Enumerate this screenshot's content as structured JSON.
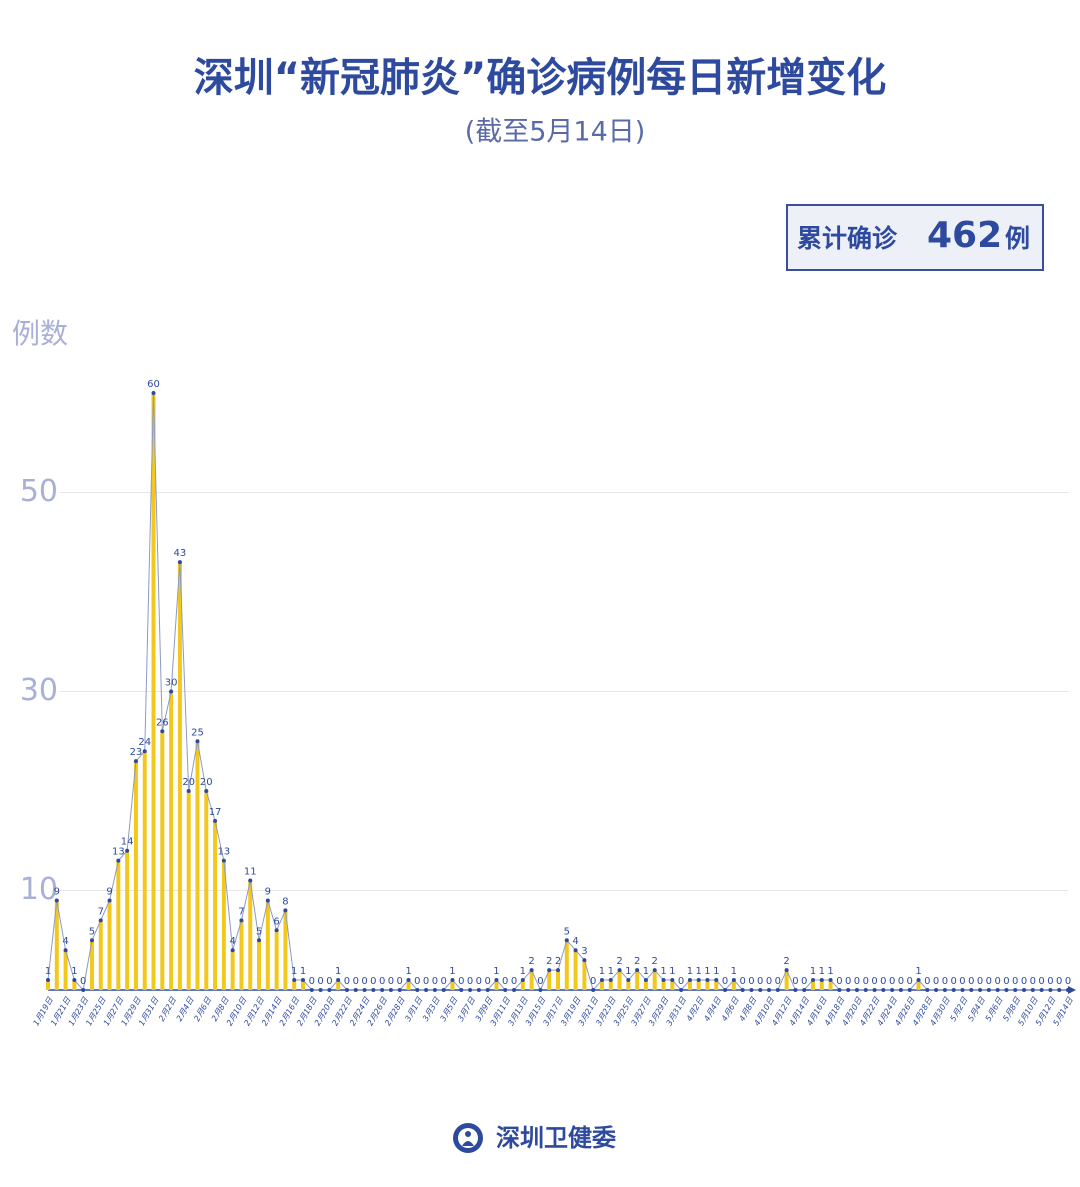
{
  "chart_data": {
    "type": "bar_line",
    "title": "深圳“新冠肺炎”确诊病例每日新增变化",
    "subtitle": "(截至5月14日)",
    "total_prefix": "累计确诊",
    "total": 462,
    "total_unit": "例",
    "y_label": "例数",
    "source": "深圳卫健委",
    "bar_color": "#f2c81c",
    "line_color": "#8e9ac4",
    "point_color": "#2e4a9e",
    "ylim": [
      0,
      60
    ],
    "yticks": [
      10,
      30,
      50
    ],
    "grid": true,
    "categories": [
      "1月19日",
      null,
      "1月21日",
      null,
      "1月23日",
      null,
      "1月25日",
      null,
      "1月27日",
      null,
      "1月29日",
      null,
      "1月31日",
      null,
      "2月2日",
      null,
      "2月4日",
      null,
      "2月6日",
      null,
      "2月8日",
      null,
      "2月10日",
      null,
      "2月12日",
      null,
      "2月14日",
      null,
      "2月16日",
      null,
      "2月18日",
      null,
      "2月20日",
      null,
      "2月22日",
      null,
      "2月24日",
      null,
      "2月26日",
      null,
      "2月28日",
      null,
      "3月1日",
      null,
      "3月3日",
      null,
      "3月5日",
      null,
      "3月7日",
      null,
      "3月9日",
      null,
      "3月11日",
      null,
      "3月13日",
      null,
      "3月15日",
      null,
      "3月17日",
      null,
      "3月19日",
      null,
      "3月21日",
      null,
      "3月23日",
      null,
      "3月25日",
      null,
      "3月27日",
      null,
      "3月29日",
      null,
      "3月31日",
      null,
      "4月2日",
      null,
      "4月4日",
      null,
      "4月6日",
      null,
      "4月8日",
      null,
      "4月10日",
      null,
      "4月12日",
      null,
      "4月14日",
      null,
      "4月16日",
      null,
      "4月18日",
      null,
      "4月20日",
      null,
      "4月22日",
      null,
      "4月24日",
      null,
      "4月26日",
      null,
      "4月28日",
      null,
      "4月30日",
      null,
      "5月2日",
      null,
      "5月4日",
      null,
      "5月6日",
      null,
      "5月8日",
      null,
      "5月10日",
      null,
      "5月12日",
      null,
      "5月14日"
    ],
    "values": [
      1,
      9,
      4,
      1,
      0,
      5,
      7,
      9,
      13,
      14,
      23,
      24,
      60,
      26,
      30,
      43,
      20,
      25,
      20,
      17,
      13,
      4,
      7,
      11,
      5,
      9,
      6,
      8,
      1,
      1,
      0,
      0,
      0,
      1,
      0,
      0,
      0,
      0,
      0,
      0,
      0,
      1,
      0,
      0,
      0,
      0,
      1,
      0,
      0,
      0,
      0,
      1,
      0,
      0,
      1,
      2,
      0,
      2,
      2,
      5,
      4,
      3,
      0,
      1,
      1,
      2,
      1,
      2,
      1,
      2,
      1,
      1,
      0,
      1,
      1,
      1,
      1,
      0,
      1,
      0,
      0,
      0,
      0,
      0,
      2,
      0,
      0,
      1,
      1,
      1,
      0,
      0,
      0,
      0,
      0,
      0,
      0,
      0,
      0,
      1,
      0,
      0,
      0,
      0,
      0,
      0,
      0,
      0,
      0,
      0,
      0,
      0,
      0,
      0,
      0,
      0,
      0
    ]
  }
}
